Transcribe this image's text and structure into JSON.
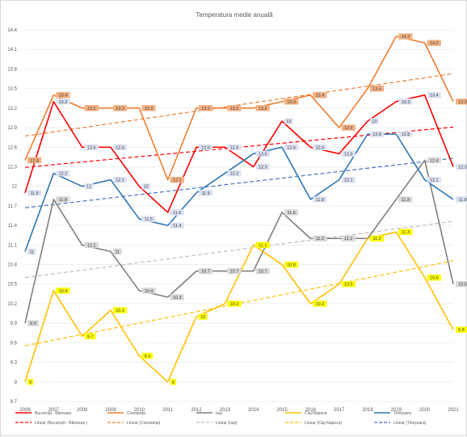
{
  "chart_data": {
    "type": "line",
    "title": "Temperatura medie anuală",
    "xlabel": "",
    "ylabel": "",
    "x": [
      "2006",
      "2007",
      "2008",
      "2009",
      "2010",
      "2011",
      "2012",
      "2013",
      "2014",
      "2015",
      "2016",
      "2017",
      "2018",
      "2019",
      "2020",
      "2021"
    ],
    "ylim": [
      8.7,
      14.4
    ],
    "yticks": [
      "8.7",
      "9",
      "9.3",
      "9.6",
      "9.9",
      "10.2",
      "10.5",
      "10.8",
      "11.1",
      "11.4",
      "11.7",
      "12",
      "12.3",
      "12.6",
      "12.9",
      "13.2",
      "13.5",
      "13.8",
      "14.1",
      "14.4"
    ],
    "grid": true,
    "legend_position": "bottom",
    "series": [
      {
        "name": "București - Băneasa",
        "color": "#ff0000",
        "label_bg": "#dde3f3",
        "values": [
          11.9,
          13.3,
          12.6,
          12.6,
          12.0,
          11.6,
          12.6,
          12.6,
          12.3,
          13.0,
          12.6,
          12.5,
          13.0,
          13.3,
          13.4,
          12.3
        ],
        "labels": [
          "11.9",
          "13.3",
          "12.6",
          "12.6",
          "12",
          "11.6",
          "12.6",
          "12.6",
          "12.3",
          "13",
          "12.6",
          "12.5",
          "13",
          "13.3",
          "13.4",
          "12.3"
        ]
      },
      {
        "name": "Constanța",
        "color": "#ed7d31",
        "label_bg": "#f4b183",
        "values": [
          12.4,
          13.4,
          13.2,
          13.2,
          13.2,
          12.1,
          13.2,
          13.2,
          13.2,
          13.3,
          13.4,
          12.9,
          13.5,
          14.3,
          14.2,
          13.3
        ],
        "labels": [
          "12.4",
          "13.4",
          "13.2",
          "13.2",
          "13.2",
          "12.1",
          "13.2",
          "13.2",
          "13.2",
          "13.3",
          "13.4",
          "12.9",
          "13.5",
          "14.3",
          "14.2",
          "13.3"
        ]
      },
      {
        "name": "Iași",
        "color": "#7f7f7f",
        "label_bg": "#d9d9d9",
        "values": [
          9.9,
          11.8,
          11.1,
          11.0,
          10.4,
          10.3,
          10.7,
          10.7,
          10.7,
          11.6,
          11.2,
          11.2,
          11.2,
          11.8,
          12.4,
          10.5
        ],
        "labels": [
          "9.9",
          "11.8",
          "11.1",
          "11",
          "10.4",
          "10.3",
          "10.7",
          "10.7",
          "10.7",
          "11.6",
          "11.2",
          "11.2",
          "11.2",
          "11.8",
          "12.4",
          "10.5"
        ]
      },
      {
        "name": "Cluj-Napoca",
        "color": "#ffc000",
        "label_bg": "#ffff00",
        "values": [
          9.0,
          10.4,
          9.7,
          10.1,
          9.4,
          9.0,
          10.0,
          10.2,
          11.1,
          10.8,
          10.2,
          10.5,
          11.2,
          11.3,
          10.6,
          9.8
        ],
        "labels": [
          "9",
          "10.4",
          "9.7",
          "10.1",
          "9.4",
          "9",
          "10",
          "10.2",
          "11.1",
          "10.8",
          "10.2",
          "10.5",
          "11.2",
          "11.3",
          "10.6",
          "9.8"
        ]
      },
      {
        "name": "Timișoara",
        "color": "#2e75b6",
        "label_bg": "#dde3f3",
        "values": [
          11.0,
          12.2,
          12.0,
          12.1,
          11.5,
          11.4,
          11.9,
          12.2,
          12.5,
          12.6,
          11.8,
          12.1,
          12.8,
          12.8,
          12.1,
          11.8
        ],
        "labels": [
          "11",
          "12.2",
          "12",
          "12.1",
          "11.5",
          "11.4",
          "11.9",
          "12.2",
          "12.5",
          "12.6",
          "11.8",
          "12.1",
          "12.8",
          "12.8",
          "12.1",
          "11.8"
        ]
      }
    ],
    "trendlines": [
      {
        "name": "Linear (București - Băneasa )",
        "color": "#ff0000",
        "of": 0
      },
      {
        "name": "Linear (Constanța)",
        "color": "#ed7d31",
        "of": 1
      },
      {
        "name": "Linear (Iași)",
        "color": "#bfbfbf",
        "of": 2
      },
      {
        "name": "Linear (Cluj-Napoca)",
        "color": "#ffc000",
        "of": 3
      },
      {
        "name": "Linear (Timișoara)",
        "color": "#4472c4",
        "of": 4
      }
    ]
  }
}
